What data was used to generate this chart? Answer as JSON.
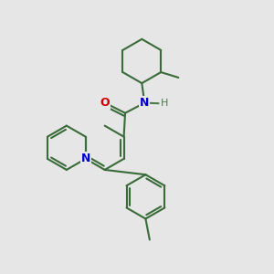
{
  "background_color": "#e6e6e6",
  "bond_color": "#3a6b3a",
  "N_color": "#0000cc",
  "O_color": "#cc0000",
  "H_color": "#4a7a4a",
  "line_width": 1.5,
  "figsize": [
    3.0,
    3.0
  ],
  "dpi": 100,
  "xlim": [
    0,
    10
  ],
  "ylim": [
    0,
    10
  ]
}
